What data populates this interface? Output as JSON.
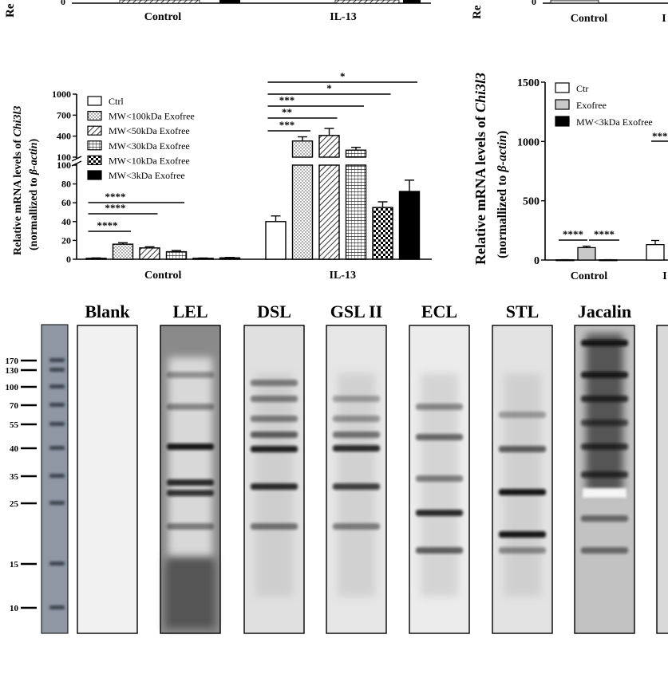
{
  "chart_data": [
    {
      "type": "bar",
      "title": "",
      "ylabel_line1_prefix": "Relative mRNA levels of ",
      "ylabel_gene": "Chi3l3",
      "ylabel_line2_prefix": "(normallized to ",
      "ylabel_ref": "β-actin",
      "ylabel_line2_suffix": ")",
      "xlabel": "",
      "categories": [
        "Control",
        "IL-13"
      ],
      "y_axis": "broken",
      "ylim_lower": [
        0,
        100
      ],
      "ylim_upper": [
        100,
        1000
      ],
      "yticks_lower": [
        "0",
        "20",
        "40",
        "60",
        "80",
        "100"
      ],
      "yticks_upper": [
        "100",
        "400",
        "700",
        "1000"
      ],
      "legend_position": "top-left",
      "series": [
        {
          "name": "Ctrl",
          "values": [
            1,
            40
          ],
          "errors": [
            0.4,
            6
          ]
        },
        {
          "name": "MW<100kDa Exofree",
          "values": [
            16,
            330
          ],
          "errors": [
            1.5,
            60
          ]
        },
        {
          "name": "MW<50kDa Exofree",
          "values": [
            12,
            410
          ],
          "errors": [
            1.2,
            100
          ]
        },
        {
          "name": "MW<30kDa Exofree",
          "values": [
            8,
            200
          ],
          "errors": [
            1.2,
            40
          ]
        },
        {
          "name": "MW<10kDa Exofree",
          "values": [
            1,
            55
          ],
          "errors": [
            0.3,
            6
          ]
        },
        {
          "name": "MW<3kDa Exofree",
          "values": [
            1.5,
            72
          ],
          "errors": [
            0.4,
            12
          ]
        }
      ],
      "significance": [
        {
          "group": "Control",
          "from": 0,
          "to": 1,
          "label": "****"
        },
        {
          "group": "Control",
          "from": 0,
          "to": 2,
          "label": "****"
        },
        {
          "group": "Control",
          "from": 0,
          "to": 3,
          "label": "****"
        },
        {
          "group": "IL-13",
          "from": 0,
          "to": 1,
          "label": "***"
        },
        {
          "group": "IL-13",
          "from": 0,
          "to": 2,
          "label": "**"
        },
        {
          "group": "IL-13",
          "from": 0,
          "to": 3,
          "label": "***"
        },
        {
          "group": "IL-13",
          "from": 0,
          "to": 4,
          "label": "*"
        },
        {
          "group": "IL-13",
          "from": 0,
          "to": 5,
          "label": "*"
        }
      ]
    },
    {
      "type": "bar",
      "title": "",
      "ylabel_line1_prefix": "Relative mRNA levels of ",
      "ylabel_gene": "Chi3l3",
      "ylabel_line2_prefix": "(normallized to ",
      "ylabel_ref": "β-actin",
      "ylabel_line2_suffix": ")",
      "xlabel": "",
      "categories": [
        "Control",
        "I"
      ],
      "ylim": [
        0,
        1500
      ],
      "yticks": [
        "0",
        "500",
        "1000",
        "1500"
      ],
      "legend_position": "top-left",
      "series": [
        {
          "name": "Ctr",
          "values": [
            2,
            130
          ],
          "errors": [
            1,
            35
          ]
        },
        {
          "name": "Exofree",
          "values": [
            105,
            null
          ],
          "errors": [
            12,
            null
          ]
        },
        {
          "name": "MW<3kDa Exofree",
          "values": [
            2,
            null
          ],
          "errors": [
            1,
            null
          ]
        }
      ],
      "significance": [
        {
          "group": "Control",
          "from": 0,
          "to": 1,
          "label": "****"
        },
        {
          "group": "Control",
          "from": 1,
          "to": 2,
          "label": "****"
        },
        {
          "group": "I",
          "label": "***"
        }
      ]
    }
  ],
  "top_fragment": {
    "left_categories": [
      "Control",
      "IL-13"
    ],
    "right_categories": [
      "Control",
      "I"
    ],
    "left_ylabel_fragment": "Re",
    "right_ylabel_fragment": "Re",
    "zero_tick": "0"
  },
  "blot": {
    "lanes": [
      "Blank",
      "LEL",
      "DSL",
      "GSL II",
      "ECL",
      "STL",
      "Jacalin"
    ],
    "markers_kda": [
      "170",
      "130",
      "100",
      "70",
      "55",
      "40",
      "35",
      "25",
      "15",
      "10"
    ]
  }
}
